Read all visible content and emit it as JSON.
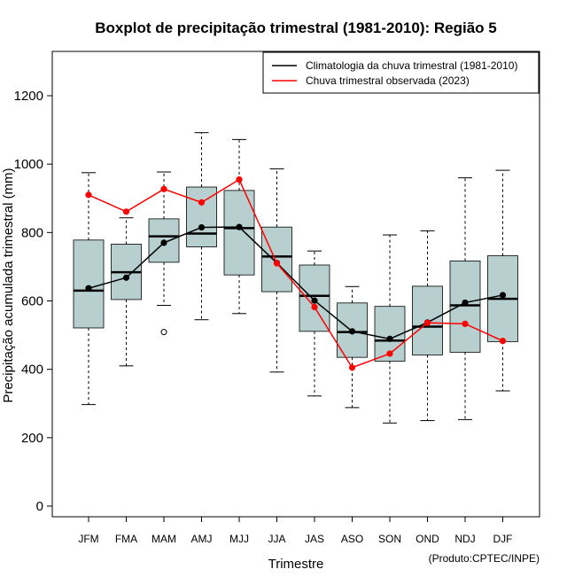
{
  "chart_data": {
    "type": "boxplot",
    "title": "Boxplot de precipitação trimestral (1981-2010): Região 5",
    "xlabel": "Trimestre",
    "ylabel": "Precipitação acumulada trimestral (mm)",
    "ylim": [
      -30,
      1330
    ],
    "yticks": [
      0,
      200,
      400,
      600,
      800,
      1000,
      1200
    ],
    "credit": "(Produto:CPTEC/INPE)",
    "legend_position": "top-right",
    "categories": [
      "JFM",
      "FMA",
      "MAM",
      "AMJ",
      "MJJ",
      "JJA",
      "JAS",
      "ASO",
      "SON",
      "OND",
      "NDJ",
      "DJF"
    ],
    "boxes": [
      {
        "whisker_low": 297,
        "q1": 521,
        "median": 630,
        "q3": 778,
        "whisker_high": 975,
        "outliers": []
      },
      {
        "whisker_low": 410,
        "q1": 604,
        "median": 684,
        "q3": 766,
        "whisker_high": 843,
        "outliers": []
      },
      {
        "whisker_low": 587,
        "q1": 713,
        "median": 789,
        "q3": 840,
        "whisker_high": 977,
        "outliers": [
          509
        ]
      },
      {
        "whisker_low": 545,
        "q1": 758,
        "median": 797,
        "q3": 933,
        "whisker_high": 1092,
        "outliers": []
      },
      {
        "whisker_low": 563,
        "q1": 676,
        "median": 813,
        "q3": 923,
        "whisker_high": 1072,
        "outliers": []
      },
      {
        "whisker_low": 392,
        "q1": 627,
        "median": 730,
        "q3": 816,
        "whisker_high": 986,
        "outliers": []
      },
      {
        "whisker_low": 322,
        "q1": 511,
        "median": 615,
        "q3": 705,
        "whisker_high": 746,
        "outliers": []
      },
      {
        "whisker_low": 288,
        "q1": 435,
        "median": 509,
        "q3": 594,
        "whisker_high": 642,
        "outliers": []
      },
      {
        "whisker_low": 243,
        "q1": 424,
        "median": 484,
        "q3": 584,
        "whisker_high": 793,
        "outliers": []
      },
      {
        "whisker_low": 250,
        "q1": 442,
        "median": 525,
        "q3": 643,
        "whisker_high": 805,
        "outliers": []
      },
      {
        "whisker_low": 253,
        "q1": 450,
        "median": 587,
        "q3": 717,
        "whisker_high": 960,
        "outliers": []
      },
      {
        "whisker_low": 337,
        "q1": 481,
        "median": 606,
        "q3": 732,
        "whisker_high": 982,
        "outliers": []
      }
    ],
    "series": [
      {
        "name": "Climatologia da chuva trimestral (1981-2010)",
        "color": "#000000",
        "values": [
          637,
          668,
          770,
          815,
          816,
          711,
          601,
          511,
          489,
          537,
          595,
          617
        ]
      },
      {
        "name": "Chuva trimestral observada (2023)",
        "color": "#ff0000",
        "values": [
          910,
          861,
          927,
          888,
          955,
          710,
          582,
          405,
          446,
          536,
          533,
          483
        ]
      }
    ],
    "box_fill": "#b7d0cf"
  }
}
